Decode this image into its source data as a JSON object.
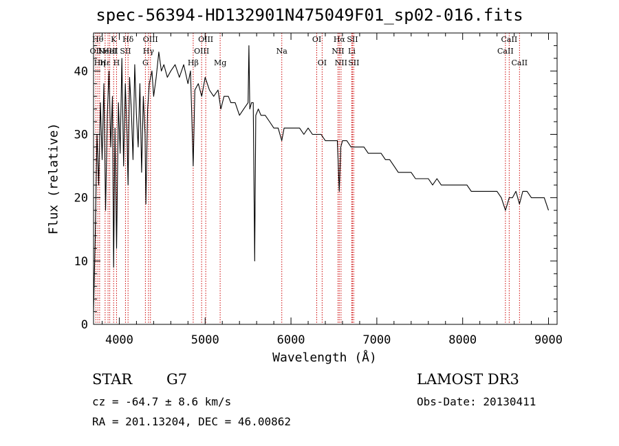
{
  "chart_data": {
    "type": "line",
    "title": "spec-56394-HD132901N475049F01_sp02-016.fits",
    "xlabel": "Wavelength (Å)",
    "ylabel": "Flux (relative)",
    "xlim": [
      3700,
      9100
    ],
    "ylim": [
      0,
      46
    ],
    "xticks": [
      "4000",
      "5000",
      "6000",
      "7000",
      "8000",
      "9000"
    ],
    "yticks": [
      "0",
      "10",
      "20",
      "30",
      "40"
    ],
    "line_color": "#000000",
    "marker_color": "#cc0000",
    "series": [
      {
        "x": [
          3700,
          3720,
          3740,
          3760,
          3780,
          3800,
          3820,
          3840,
          3860,
          3880,
          3900,
          3920,
          3934,
          3950,
          3968,
          3990,
          4010,
          4030,
          4050,
          4070,
          4090,
          4102,
          4120,
          4140,
          4160,
          4180,
          4200,
          4220,
          4240,
          4260,
          4280,
          4300,
          4310,
          4330,
          4350,
          4380,
          4400,
          4430,
          4460,
          4490,
          4520,
          4560,
          4600,
          4650,
          4700,
          4750,
          4800,
          4830,
          4861,
          4880,
          4920,
          4960,
          5000,
          5050,
          5100,
          5150,
          5183,
          5220,
          5270,
          5300,
          5350,
          5400,
          5450,
          5500,
          5510,
          5520,
          5540,
          5560,
          5577,
          5590,
          5620,
          5650,
          5700,
          5750,
          5800,
          5850,
          5893,
          5920,
          5960,
          6000,
          6050,
          6100,
          6150,
          6200,
          6250,
          6300,
          6350,
          6400,
          6450,
          6500,
          6540,
          6563,
          6580,
          6600,
          6650,
          6700,
          6750,
          6800,
          6850,
          6900,
          6950,
          7000,
          7050,
          7100,
          7150,
          7200,
          7250,
          7300,
          7350,
          7400,
          7450,
          7500,
          7550,
          7600,
          7650,
          7700,
          7750,
          7800,
          7850,
          7900,
          7950,
          8000,
          8050,
          8100,
          8150,
          8200,
          8250,
          8300,
          8350,
          8400,
          8450,
          8498,
          8542,
          8580,
          8620,
          8662,
          8700,
          8750,
          8800,
          8850,
          8900,
          8950,
          9000
        ],
        "y": [
          2,
          14,
          30,
          22,
          35,
          26,
          38,
          18,
          33,
          40,
          28,
          36,
          9,
          31,
          12,
          35,
          27,
          42,
          25,
          38,
          30,
          22,
          39,
          34,
          26,
          41,
          33,
          28,
          38,
          24,
          36,
          30,
          19,
          34,
          38,
          40,
          36,
          39,
          43,
          40,
          41,
          39,
          40,
          41,
          39,
          41,
          38,
          40,
          25,
          37,
          38,
          36,
          39,
          37,
          36,
          37,
          34,
          36,
          36,
          35,
          35,
          33,
          34,
          35,
          44,
          34,
          35,
          35,
          10,
          33,
          34,
          33,
          33,
          32,
          31,
          31,
          29,
          31,
          31,
          31,
          31,
          31,
          30,
          31,
          30,
          30,
          30,
          29,
          29,
          29,
          29,
          21,
          28,
          29,
          29,
          28,
          28,
          28,
          28,
          27,
          27,
          27,
          27,
          26,
          26,
          25,
          24,
          24,
          24,
          24,
          23,
          23,
          23,
          23,
          22,
          23,
          22,
          22,
          22,
          22,
          22,
          22,
          22,
          21,
          21,
          21,
          21,
          21,
          21,
          21,
          20,
          18,
          20,
          20,
          21,
          19,
          21,
          21,
          20,
          20,
          20,
          20,
          18
        ]
      }
    ],
    "line_markers": [
      {
        "x": 3727,
        "label": "OII",
        "row": 2
      },
      {
        "x": 3750,
        "label": "Hθ",
        "row": 1
      },
      {
        "x": 3771,
        "label": "Hη",
        "row": 3
      },
      {
        "x": 3835,
        "label": "Hε",
        "row": 3
      },
      {
        "x": 3869,
        "label": "NeIII",
        "row": 2
      },
      {
        "x": 3889,
        "label": "HeI",
        "row": 2
      },
      {
        "x": 3934,
        "label": "K",
        "row": 1
      },
      {
        "x": 3968,
        "label": "H",
        "row": 3
      },
      {
        "x": 4072,
        "label": "SII",
        "row": 2
      },
      {
        "x": 4102,
        "label": "Hδ",
        "row": 1
      },
      {
        "x": 4304,
        "label": "G",
        "row": 3
      },
      {
        "x": 4340,
        "label": "Hγ",
        "row": 2
      },
      {
        "x": 4363,
        "label": "OIII",
        "row": 1
      },
      {
        "x": 4861,
        "label": "Hβ",
        "row": 3
      },
      {
        "x": 4959,
        "label": "OIII",
        "row": 2
      },
      {
        "x": 5007,
        "label": "OIII",
        "row": 1
      },
      {
        "x": 5175,
        "label": "Mg",
        "row": 3
      },
      {
        "x": 5893,
        "label": "Na",
        "row": 2
      },
      {
        "x": 6300,
        "label": "OI",
        "row": 1
      },
      {
        "x": 6363,
        "label": "OI",
        "row": 3
      },
      {
        "x": 6548,
        "label": "NII",
        "row": 2
      },
      {
        "x": 6563,
        "label": "Hα",
        "row": 1
      },
      {
        "x": 6583,
        "label": "NII",
        "row": 3
      },
      {
        "x": 6708,
        "label": "Li",
        "row": 2
      },
      {
        "x": 6716,
        "label": "SII",
        "row": 1
      },
      {
        "x": 6731,
        "label": "SII",
        "row": 3
      },
      {
        "x": 8498,
        "label": "CaII",
        "row": 2
      },
      {
        "x": 8542,
        "label": "CaII",
        "row": 1
      },
      {
        "x": 8662,
        "label": "CaII",
        "row": 3
      }
    ]
  },
  "info": {
    "object_class": "STAR",
    "subclass": "G7",
    "survey": "LAMOST DR3",
    "cz": "cz = -64.7 ± 8.6 km/s",
    "obs_date": "Obs-Date: 20130411",
    "coords": "RA = 201.13204, DEC =  46.00862"
  }
}
